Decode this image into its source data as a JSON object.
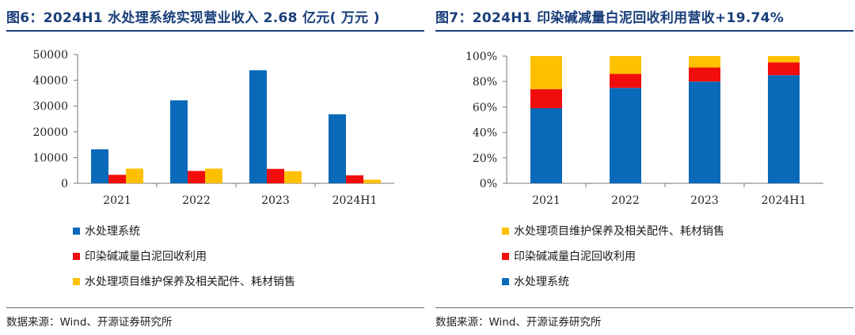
{
  "left": {
    "title": "图6：2024H1 水处理系统实现营业收入 2.68 亿元( 万元 )",
    "source": "数据来源：Wind、开源证券研究所",
    "legend": [
      "水处理系统",
      "印染碱减量白泥回收利用",
      "水处理项目维护保养及相关配件、耗材销售"
    ]
  },
  "right": {
    "title": "图7：2024H1 印染碱减量白泥回收利用营收+19.74%",
    "source": "数据来源：Wind、开源证券研究所",
    "legend": [
      "水处理项目维护保养及相关配件、耗材销售",
      "印染碱减量白泥回收利用",
      "水处理系统"
    ]
  },
  "colors": {
    "blue": "#0a6ab9",
    "red": "#f20d0d",
    "yellow": "#ffc000",
    "title": "#1a3f7a"
  },
  "chart_data": [
    {
      "type": "bar",
      "categories": [
        "2021",
        "2022",
        "2023",
        "2024H1"
      ],
      "series": [
        {
          "name": "水处理系统",
          "values": [
            13200,
            32200,
            43900,
            26800
          ]
        },
        {
          "name": "印染碱减量白泥回收利用",
          "values": [
            3300,
            4800,
            5600,
            3100
          ]
        },
        {
          "name": "水处理项目维护保养及相关配件、耗材销售",
          "values": [
            5700,
            5700,
            4700,
            1400
          ]
        }
      ],
      "ylim": [
        0,
        50000
      ],
      "yticks": [
        "0",
        "10000",
        "20000",
        "30000",
        "40000",
        "50000"
      ],
      "grid": false,
      "legend_position": "bottom"
    },
    {
      "type": "bar",
      "stacked": true,
      "categories": [
        "2021",
        "2022",
        "2023",
        "2024H1"
      ],
      "series": [
        {
          "name": "水处理系统",
          "values": [
            0.59,
            0.75,
            0.8,
            0.85
          ]
        },
        {
          "name": "印染碱减量白泥回收利用",
          "values": [
            0.15,
            0.11,
            0.11,
            0.1
          ]
        },
        {
          "name": "水处理项目维护保养及相关配件、耗材销售",
          "values": [
            0.26,
            0.14,
            0.09,
            0.05
          ]
        }
      ],
      "ylim": [
        0,
        1
      ],
      "yticks": [
        "0%",
        "20%",
        "40%",
        "60%",
        "80%",
        "100%"
      ],
      "grid": false,
      "legend_position": "bottom"
    }
  ]
}
